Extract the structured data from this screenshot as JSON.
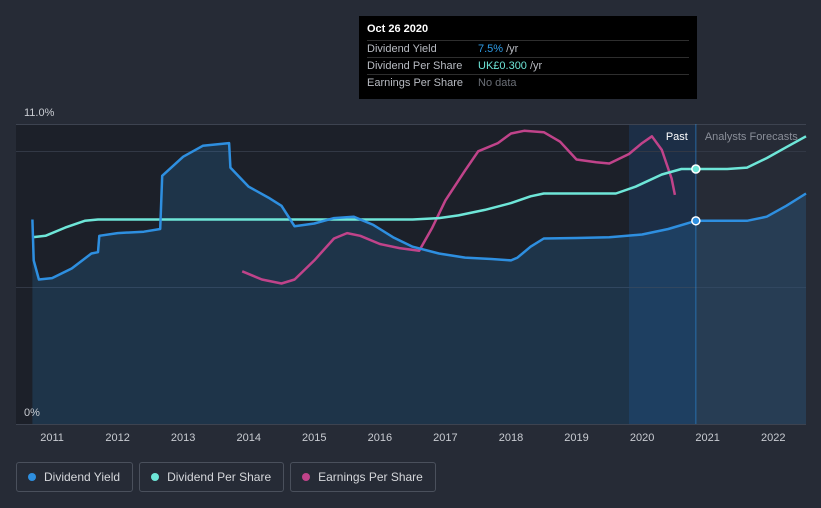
{
  "tooltip": {
    "date": "Oct 26 2020",
    "rows": [
      {
        "label": "Dividend Yield",
        "value": "7.5%",
        "unit": "/yr"
      },
      {
        "label": "Dividend Per Share",
        "value": "UK£0.300",
        "unit": "/yr"
      },
      {
        "label": "Earnings Per Share",
        "value": "No data",
        "unit": ""
      }
    ]
  },
  "regions": {
    "past": "Past",
    "forecast": "Analysts Forecasts"
  },
  "legend": [
    {
      "label": "Dividend Yield",
      "color": "#2e8fe0"
    },
    {
      "label": "Dividend Per Share",
      "color": "#6ee6d8"
    },
    {
      "label": "Earnings Per Share",
      "color": "#c0438a"
    }
  ],
  "chart_data": {
    "type": "line",
    "title": "",
    "xlabel": "",
    "ylabel": "",
    "y_tick_labels": [
      "11.0%",
      "0%"
    ],
    "x_tick_labels": [
      "2011",
      "2012",
      "2013",
      "2014",
      "2015",
      "2016",
      "2017",
      "2018",
      "2019",
      "2020",
      "2021",
      "2022"
    ],
    "xlim": [
      2010.45,
      2022.5
    ],
    "ylim": [
      0,
      11.0
    ],
    "marker_date": 2020.82,
    "past_shade_start": 2019.8,
    "series": [
      {
        "name": "Dividend Yield",
        "color": "#2e8fe0",
        "unit": "%",
        "area": true,
        "points": [
          [
            2010.7,
            7.5
          ],
          [
            2010.72,
            6.0
          ],
          [
            2010.8,
            5.3
          ],
          [
            2011.0,
            5.35
          ],
          [
            2011.3,
            5.7
          ],
          [
            2011.6,
            6.25
          ],
          [
            2011.7,
            6.3
          ],
          [
            2011.72,
            6.9
          ],
          [
            2012.0,
            7.0
          ],
          [
            2012.4,
            7.05
          ],
          [
            2012.65,
            7.15
          ],
          [
            2012.68,
            9.1
          ],
          [
            2013.0,
            9.8
          ],
          [
            2013.3,
            10.2
          ],
          [
            2013.7,
            10.3
          ],
          [
            2013.72,
            9.4
          ],
          [
            2014.0,
            8.7
          ],
          [
            2014.3,
            8.3
          ],
          [
            2014.5,
            8.0
          ],
          [
            2014.7,
            7.25
          ],
          [
            2015.0,
            7.35
          ],
          [
            2015.3,
            7.55
          ],
          [
            2015.6,
            7.6
          ],
          [
            2015.9,
            7.3
          ],
          [
            2016.2,
            6.85
          ],
          [
            2016.5,
            6.5
          ],
          [
            2016.9,
            6.25
          ],
          [
            2017.3,
            6.1
          ],
          [
            2017.7,
            6.05
          ],
          [
            2018.0,
            6.0
          ],
          [
            2018.1,
            6.1
          ],
          [
            2018.3,
            6.5
          ],
          [
            2018.5,
            6.8
          ],
          [
            2019.0,
            6.82
          ],
          [
            2019.5,
            6.85
          ],
          [
            2020.0,
            6.95
          ],
          [
            2020.4,
            7.15
          ],
          [
            2020.82,
            7.45
          ],
          [
            2021.6,
            7.45
          ],
          [
            2021.9,
            7.6
          ],
          [
            2022.2,
            8.0
          ],
          [
            2022.5,
            8.45
          ]
        ]
      },
      {
        "name": "Dividend Per Share",
        "color": "#6ee6d8",
        "unit": "UK£",
        "points": [
          [
            2010.7,
            6.85
          ],
          [
            2010.9,
            6.9
          ],
          [
            2011.2,
            7.2
          ],
          [
            2011.5,
            7.45
          ],
          [
            2011.7,
            7.5
          ],
          [
            2012.5,
            7.5
          ],
          [
            2013.5,
            7.5
          ],
          [
            2014.5,
            7.5
          ],
          [
            2015.5,
            7.5
          ],
          [
            2016.5,
            7.5
          ],
          [
            2016.9,
            7.55
          ],
          [
            2017.2,
            7.65
          ],
          [
            2017.6,
            7.85
          ],
          [
            2018.0,
            8.1
          ],
          [
            2018.3,
            8.35
          ],
          [
            2018.5,
            8.45
          ],
          [
            2019.0,
            8.45
          ],
          [
            2019.6,
            8.45
          ],
          [
            2019.9,
            8.7
          ],
          [
            2020.3,
            9.15
          ],
          [
            2020.6,
            9.35
          ],
          [
            2020.82,
            9.35
          ],
          [
            2021.3,
            9.35
          ],
          [
            2021.6,
            9.4
          ],
          [
            2021.9,
            9.75
          ],
          [
            2022.2,
            10.15
          ],
          [
            2022.5,
            10.55
          ]
        ]
      },
      {
        "name": "Earnings Per Share",
        "color": "#c0438a",
        "unit": "UK£",
        "points": [
          [
            2013.9,
            5.6
          ],
          [
            2014.2,
            5.3
          ],
          [
            2014.5,
            5.15
          ],
          [
            2014.7,
            5.3
          ],
          [
            2015.0,
            6.0
          ],
          [
            2015.3,
            6.8
          ],
          [
            2015.5,
            7.0
          ],
          [
            2015.7,
            6.9
          ],
          [
            2016.0,
            6.6
          ],
          [
            2016.3,
            6.45
          ],
          [
            2016.6,
            6.35
          ],
          [
            2016.8,
            7.2
          ],
          [
            2017.0,
            8.2
          ],
          [
            2017.3,
            9.3
          ],
          [
            2017.5,
            10.0
          ],
          [
            2017.8,
            10.3
          ],
          [
            2018.0,
            10.65
          ],
          [
            2018.2,
            10.75
          ],
          [
            2018.5,
            10.7
          ],
          [
            2018.75,
            10.35
          ],
          [
            2019.0,
            9.7
          ],
          [
            2019.3,
            9.6
          ],
          [
            2019.5,
            9.55
          ],
          [
            2019.8,
            9.9
          ],
          [
            2020.0,
            10.3
          ],
          [
            2020.15,
            10.55
          ],
          [
            2020.3,
            10.05
          ],
          [
            2020.45,
            9.0
          ],
          [
            2020.5,
            8.4
          ]
        ]
      }
    ]
  }
}
